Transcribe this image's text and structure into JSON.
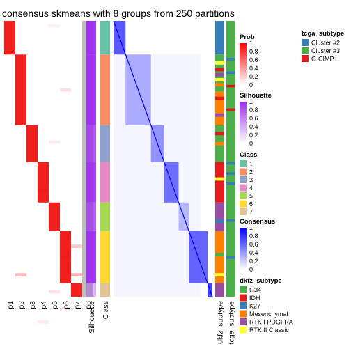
{
  "chart_data": {
    "type": "heatmap",
    "title": "consensus skmeans with 8 groups from 250 partitions",
    "prob_columns": [
      "p1",
      "p2",
      "p3",
      "p4",
      "p5",
      "p6",
      "p7",
      "p8"
    ],
    "annotation_labels": [
      "Silhouette",
      "Class",
      "dkfz_subtype",
      "tcga_subtype"
    ],
    "groups": [
      {
        "class": 1,
        "size": 20
      },
      {
        "class": 2,
        "size": 42
      },
      {
        "class": 3,
        "size": 22
      },
      {
        "class": 4,
        "size": 24
      },
      {
        "class": 5,
        "size": 17
      },
      {
        "class": 6,
        "size": 31
      },
      {
        "class": 7,
        "size": 8
      }
    ],
    "legends": {
      "prob": {
        "title": "Prob",
        "ticks": [
          "1",
          "0.8",
          "0.6",
          "0.4",
          "0.2",
          "0"
        ],
        "high": "#ff0000",
        "low": "#ffffff"
      },
      "silhouette": {
        "title": "Silhouette",
        "ticks": [
          "1",
          "0.8",
          "0.6",
          "0.4",
          "0.2",
          "0"
        ],
        "high": "#9e2bf0",
        "low": "#ffffff"
      },
      "class": {
        "title": "Class",
        "items": [
          {
            "label": "1",
            "color": "#66c2a5"
          },
          {
            "label": "2",
            "color": "#fc8d62"
          },
          {
            "label": "3",
            "color": "#8da0cb"
          },
          {
            "label": "4",
            "color": "#e78ac3"
          },
          {
            "label": "5",
            "color": "#a6d854"
          },
          {
            "label": "6",
            "color": "#ffd92f"
          },
          {
            "label": "7",
            "color": "#e5c494"
          }
        ]
      },
      "consensus": {
        "title": "Consensus",
        "ticks": [
          "1",
          "0.8",
          "0.6",
          "0.4",
          "0.2",
          "0"
        ],
        "high": "#0000ff",
        "low": "#ffffff"
      },
      "dkfz_subtype": {
        "title": "dkfz_subtype",
        "items": [
          {
            "label": "G34",
            "color": "#4daf4a"
          },
          {
            "label": "IDH",
            "color": "#e41a1c"
          },
          {
            "label": "K27",
            "color": "#377eb8"
          },
          {
            "label": "Mesenchymal",
            "color": "#ff7f00"
          },
          {
            "label": "RTK I PDGFRA",
            "color": "#984ea3"
          },
          {
            "label": "RTK II Classic",
            "color": "#ffff33"
          }
        ]
      },
      "tcga_subtype": {
        "title": "tcga_subtype",
        "items": [
          {
            "label": "Cluster #2",
            "color": "#377eb8"
          },
          {
            "label": "Cluster #3",
            "color": "#4daf4a"
          },
          {
            "label": "G-CIMP+",
            "color": "#e41a1c"
          }
        ]
      }
    }
  }
}
